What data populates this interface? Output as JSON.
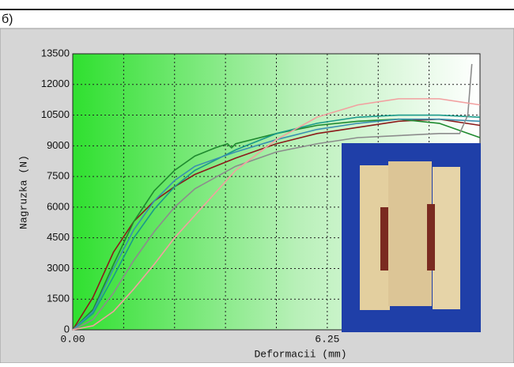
{
  "panel_label": "б)",
  "chart_data": {
    "type": "line",
    "xlabel": "Deformacii (mm)",
    "ylabel": "Nagruzka (N)",
    "xlim": [
      0,
      10
    ],
    "ylim": [
      0,
      13500
    ],
    "xticks": [
      {
        "value": 0,
        "label": "0.00"
      },
      {
        "value": 1.25,
        "label": null
      },
      {
        "value": 2.5,
        "label": null
      },
      {
        "value": 3.75,
        "label": null
      },
      {
        "value": 5,
        "label": null
      },
      {
        "value": 6.25,
        "label": "6.25"
      },
      {
        "value": 7.5,
        "label": null
      },
      {
        "value": 8.75,
        "label": null
      },
      {
        "value": 10,
        "label": null
      }
    ],
    "yticks": [
      0,
      1500,
      3000,
      4500,
      6000,
      7500,
      9000,
      10500,
      12000,
      13500
    ],
    "grid": true,
    "series": [
      {
        "color": "#8b1a1a",
        "x": [
          0,
          0.5,
          1,
          1.5,
          2,
          2.5,
          3,
          4,
          5,
          6,
          7,
          8,
          9,
          10
        ],
        "values": [
          0,
          1600,
          3800,
          5300,
          6300,
          7000,
          7600,
          8400,
          9100,
          9600,
          9900,
          10200,
          10300,
          10000
        ]
      },
      {
        "color": "#1e8a2e",
        "x": [
          0,
          0.5,
          1,
          1.5,
          2,
          2.5,
          3,
          3.5,
          3.8,
          3.9,
          4,
          5,
          6,
          7,
          8,
          9,
          10
        ],
        "values": [
          0,
          1000,
          3200,
          5300,
          6800,
          7800,
          8500,
          8900,
          9100,
          8900,
          9100,
          9600,
          10000,
          10200,
          10300,
          10100,
          9400
        ]
      },
      {
        "color": "#1a9a8a",
        "x": [
          0,
          0.5,
          1,
          1.5,
          2,
          2.5,
          3,
          4,
          5,
          6,
          7,
          8,
          9,
          10
        ],
        "values": [
          0,
          800,
          2600,
          4500,
          5900,
          7000,
          7800,
          8800,
          9600,
          10100,
          10400,
          10500,
          10500,
          10400
        ]
      },
      {
        "color": "#3a8fb0",
        "x": [
          0,
          0.5,
          1,
          1.5,
          2,
          2.5,
          3,
          4,
          5,
          6,
          7,
          8,
          9,
          10
        ],
        "values": [
          0,
          900,
          3000,
          4900,
          6300,
          7300,
          8000,
          8700,
          9300,
          9800,
          10100,
          10300,
          10300,
          10200
        ]
      },
      {
        "color": "#8c8c8c",
        "x": [
          0,
          0.5,
          1,
          1.5,
          2,
          2.5,
          3,
          4,
          5,
          6,
          7,
          8,
          9,
          9.5,
          9.7,
          9.8
        ],
        "values": [
          0,
          500,
          1800,
          3400,
          4800,
          6000,
          6900,
          8000,
          8700,
          9100,
          9400,
          9500,
          9600,
          9600,
          10500,
          13000
        ]
      },
      {
        "color": "#f2a0a0",
        "x": [
          0,
          0.5,
          1,
          1.5,
          2,
          2.5,
          3,
          4,
          5,
          6,
          7,
          8,
          9,
          10
        ],
        "values": [
          0,
          200,
          900,
          2000,
          3200,
          4500,
          5600,
          7800,
          9300,
          10400,
          11000,
          11300,
          11300,
          11000
        ]
      }
    ]
  }
}
